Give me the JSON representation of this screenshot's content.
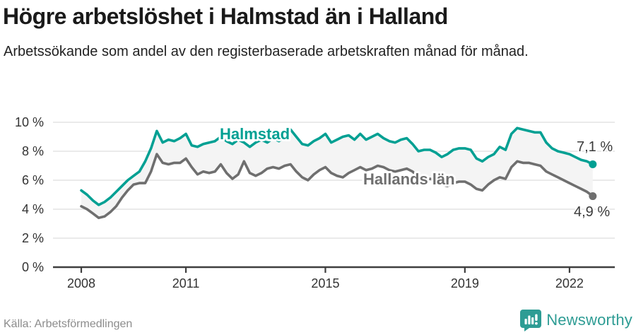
{
  "header": {
    "title": "Högre arbetslöshet i Halmstad än i Halland",
    "subtitle": "Arbetssökande som andel av den registerbaserade arbetskraften månad för månad."
  },
  "footer": {
    "source": "Källa: Arbetsförmedlingen",
    "brand": "Newsworthy"
  },
  "colors": {
    "accent_teal": "#00a093",
    "line_gray": "#6f6f6f",
    "band_fill": "#f4f4f4",
    "grid": "#dedede",
    "axis": "#3f3f3f",
    "tick_text": "#333333",
    "value_label_text": "#3a3a3a",
    "source_text": "#8c8c8c",
    "logo_teal": "#2e9c94"
  },
  "chart_data": {
    "type": "line",
    "title": "Arbetssökande som andel av den registerbaserade arbetskraften månad för månad",
    "xlabel": "",
    "ylabel": "",
    "ylim": [
      0,
      10
    ],
    "y_ticks": [
      0,
      2,
      4,
      6,
      8,
      10
    ],
    "y_tick_suffix": " %",
    "x_ticks": [
      2008,
      2011,
      2015,
      2019,
      2022
    ],
    "x_start": 2008.0,
    "x_step_years": 0.16667,
    "grid": true,
    "legend_position": "inline-labels",
    "series": [
      {
        "name": "Halmstad",
        "color": "#00a093",
        "end_label": "7,1 %",
        "end_value": 7.1,
        "values": [
          5.3,
          5.0,
          4.6,
          4.3,
          4.5,
          4.8,
          5.2,
          5.6,
          6.0,
          6.3,
          6.6,
          7.3,
          8.2,
          9.4,
          8.6,
          8.8,
          8.7,
          8.9,
          9.2,
          8.4,
          8.3,
          8.5,
          8.6,
          8.7,
          9.0,
          8.7,
          8.5,
          8.8,
          8.6,
          8.3,
          8.6,
          8.8,
          8.6,
          8.9,
          8.7,
          9.0,
          9.5,
          9.0,
          8.5,
          8.4,
          8.7,
          8.9,
          9.2,
          8.6,
          8.8,
          9.0,
          9.1,
          8.8,
          9.2,
          8.8,
          9.0,
          9.2,
          8.9,
          8.7,
          8.6,
          8.8,
          8.9,
          8.5,
          8.0,
          8.1,
          8.1,
          7.9,
          7.6,
          7.8,
          8.1,
          8.2,
          8.2,
          8.1,
          7.5,
          7.3,
          7.6,
          7.8,
          8.3,
          8.1,
          9.2,
          9.6,
          9.5,
          9.4,
          9.3,
          9.3,
          8.6,
          8.2,
          8.0,
          7.9,
          7.8,
          7.6,
          7.4,
          7.3,
          7.1
        ]
      },
      {
        "name": "Hallands län",
        "color": "#6f6f6f",
        "end_label": "4,9 %",
        "end_value": 4.9,
        "values": [
          4.2,
          4.0,
          3.7,
          3.4,
          3.5,
          3.8,
          4.2,
          4.8,
          5.3,
          5.7,
          5.8,
          5.8,
          6.6,
          7.8,
          7.2,
          7.1,
          7.2,
          7.2,
          7.5,
          6.9,
          6.4,
          6.6,
          6.5,
          6.6,
          7.1,
          6.5,
          6.1,
          6.4,
          7.3,
          6.5,
          6.3,
          6.5,
          6.8,
          6.9,
          6.8,
          7.0,
          7.1,
          6.6,
          6.2,
          6.0,
          6.4,
          6.7,
          6.9,
          6.5,
          6.3,
          6.2,
          6.5,
          6.7,
          6.9,
          6.7,
          6.8,
          7.0,
          6.9,
          6.7,
          6.6,
          6.7,
          6.8,
          6.6,
          6.2,
          6.1,
          6.1,
          6.0,
          5.7,
          5.6,
          5.8,
          5.9,
          5.9,
          5.7,
          5.4,
          5.3,
          5.7,
          6.0,
          6.2,
          6.1,
          6.9,
          7.3,
          7.2,
          7.2,
          7.1,
          7.0,
          6.6,
          6.4,
          6.2,
          6.0,
          5.8,
          5.6,
          5.4,
          5.2,
          4.9
        ]
      }
    ]
  }
}
